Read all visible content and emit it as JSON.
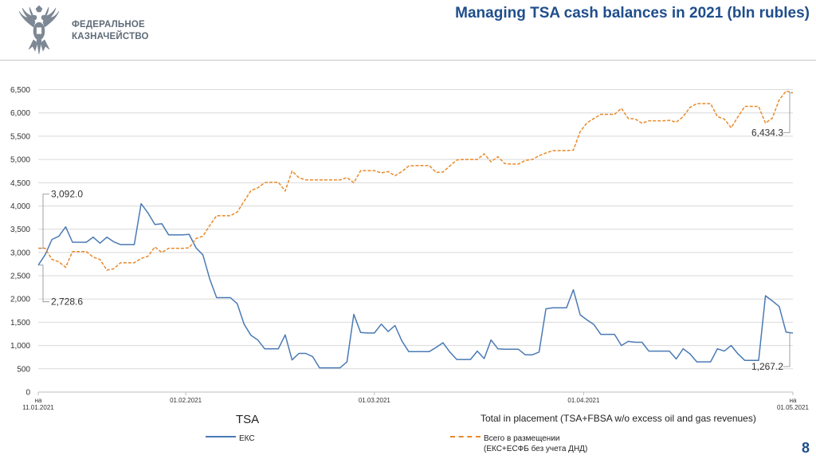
{
  "header": {
    "logo_line1": "ФЕДЕРАЛЬНОЕ",
    "logo_line2": "КАЗНАЧЕЙСТВО",
    "title": "Managing TSA cash balances in 2021 (bln rubles)"
  },
  "colors": {
    "eks": "#4a7ab5",
    "total": "#e98a2a",
    "title": "#1f4e8c",
    "grid": "#d9d9d9"
  },
  "chart_data": {
    "type": "line",
    "title": "Managing TSA cash balances in 2021 (bln rubles)",
    "ylim": [
      0,
      6800
    ],
    "yticks": [
      0,
      500,
      1000,
      1500,
      2000,
      2500,
      3000,
      3500,
      4000,
      4500,
      5000,
      5500,
      6000,
      6500
    ],
    "ytick_labels": [
      "0",
      "500",
      "1,000",
      "1,500",
      "2,000",
      "2,500",
      "3,000",
      "3,500",
      "4,000",
      "4,500",
      "5,000",
      "5,500",
      "6,000",
      "6,500"
    ],
    "grid": "horizontal",
    "x_range": [
      0,
      110
    ],
    "xticks": [
      {
        "x": 0,
        "lines": [
          "на",
          "11.01.2021"
        ]
      },
      {
        "x": 21.5,
        "lines": [
          "01.02.2021"
        ]
      },
      {
        "x": 49,
        "lines": [
          "01.03.2021"
        ]
      },
      {
        "x": 79.5,
        "lines": [
          "01.04.2021"
        ]
      },
      {
        "x": 110,
        "lines": [
          "на",
          "01.05.2021"
        ]
      }
    ],
    "x_group_labels": {
      "left": "TSA",
      "right": "Total in placement (TSA+FBSA w/o excess oil and gas revenues)"
    },
    "legend_placement": "bottom",
    "series": [
      {
        "name": "ЕКС",
        "style": "solid",
        "color": "#4a7ab5",
        "values": [
          2728.6,
          2950,
          3280,
          3350,
          3550,
          3220,
          3220,
          3220,
          3330,
          3200,
          3330,
          3230,
          3170,
          3170,
          3170,
          4050,
          3850,
          3600,
          3620,
          3380,
          3380,
          3380,
          3390,
          3100,
          2950,
          2430,
          2030,
          2030,
          2030,
          1900,
          1460,
          1220,
          1120,
          930,
          930,
          930,
          1230,
          690,
          830,
          830,
          760,
          520,
          520,
          520,
          520,
          650,
          1670,
          1280,
          1270,
          1270,
          1460,
          1300,
          1430,
          1100,
          870,
          870,
          870,
          870,
          960,
          1060,
          860,
          700,
          700,
          700,
          880,
          720,
          1120,
          930,
          920,
          920,
          920,
          800,
          800,
          860,
          1790,
          1810,
          1810,
          1810,
          2200,
          1660,
          1550,
          1450,
          1240,
          1240,
          1240,
          1000,
          1090,
          1070,
          1070,
          880,
          880,
          880,
          880,
          710,
          930,
          820,
          650,
          650,
          650,
          930,
          880,
          1000,
          820,
          680,
          680,
          680,
          2070,
          1960,
          1840,
          1290,
          1267.2
        ]
      },
      {
        "name": "Всего в размещении (ЕКС+ЕСФБ без учета ДНД)",
        "style": "dashed",
        "color": "#e98a2a",
        "values": [
          3092.0,
          3092,
          2850,
          2800,
          2680,
          3020,
          3020,
          3020,
          2900,
          2850,
          2620,
          2650,
          2780,
          2780,
          2780,
          2870,
          2920,
          3120,
          3000,
          3090,
          3090,
          3090,
          3100,
          3300,
          3350,
          3580,
          3790,
          3790,
          3790,
          3870,
          4100,
          4330,
          4390,
          4500,
          4510,
          4510,
          4320,
          4750,
          4610,
          4560,
          4560,
          4560,
          4560,
          4560,
          4560,
          4610,
          4500,
          4760,
          4760,
          4760,
          4710,
          4740,
          4650,
          4740,
          4860,
          4870,
          4870,
          4870,
          4720,
          4730,
          4860,
          4990,
          5000,
          5000,
          5000,
          5120,
          4950,
          5060,
          4910,
          4900,
          4900,
          4980,
          5000,
          5080,
          5140,
          5190,
          5190,
          5190,
          5200,
          5600,
          5790,
          5880,
          5970,
          5970,
          5970,
          6100,
          5880,
          5870,
          5780,
          5830,
          5830,
          5830,
          5840,
          5800,
          5920,
          6120,
          6200,
          6200,
          6200,
          5920,
          5870,
          5680,
          5920,
          6140,
          6140,
          6140,
          5780,
          5890,
          6280,
          6470,
          6434.3
        ]
      }
    ],
    "annotations": [
      {
        "series": 1,
        "index": 0,
        "text": "3,092.0"
      },
      {
        "series": 0,
        "index": 0,
        "text": "2,728.6"
      },
      {
        "series": 1,
        "index": 110,
        "text": "6,434.3"
      },
      {
        "series": 0,
        "index": 110,
        "text": "1,267.2"
      }
    ]
  },
  "legend": {
    "eks": "ЕКС",
    "total_line1": "Всего в размещении",
    "total_line2": "(ЕКС+ЕСФБ без учета ДНД)"
  },
  "page_number": "8"
}
